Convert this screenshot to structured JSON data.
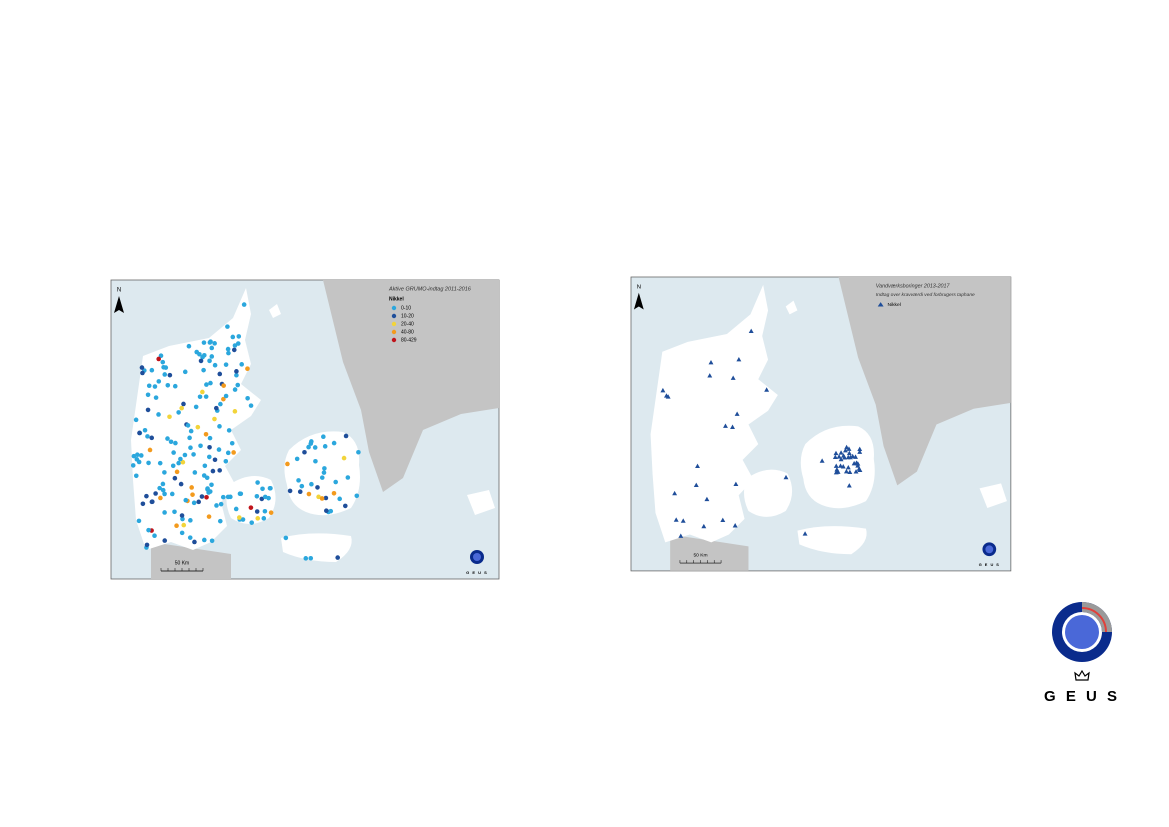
{
  "slide": {
    "maps": [
      {
        "title": "Aktive GRUMO-indtag 2011-2016",
        "legend": {
          "title": "Nikkel",
          "items": [
            {
              "label": "0-10",
              "color": "#2ba7dd"
            },
            {
              "label": "10-20",
              "color": "#1f4e9a"
            },
            {
              "label": "20-40",
              "color": "#f2d43a"
            },
            {
              "label": "40-80",
              "color": "#f39a1d"
            },
            {
              "label": "80-429",
              "color": "#c0141b"
            }
          ]
        },
        "north": "N",
        "scale_label": "50 Km",
        "logo": "G E U S"
      },
      {
        "title": "Vandværksboringer 2013-2017",
        "subtitle": "Indtag over kravværdi ved forbrugers taphane",
        "legend": {
          "items": [
            {
              "label": "Nikkel",
              "color": "#1f4e9a"
            }
          ]
        },
        "north": "N",
        "scale_label": "50 Km",
        "logo": "G E U S"
      }
    ],
    "logo": "G E U S"
  }
}
